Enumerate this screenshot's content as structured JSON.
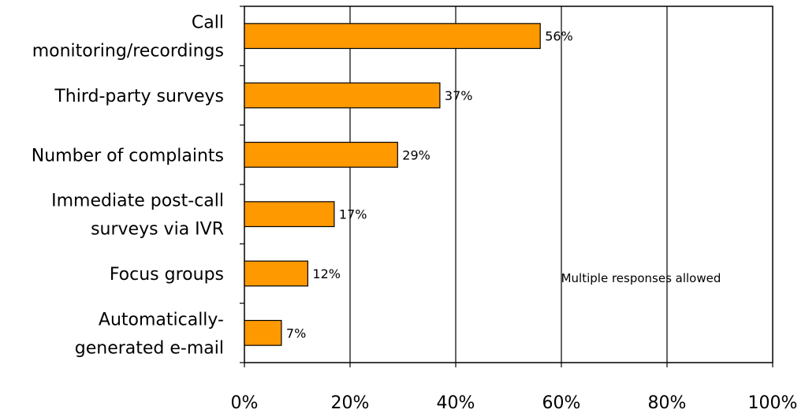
{
  "chart_data": {
    "type": "bar",
    "orientation": "horizontal",
    "categories": [
      [
        "Call",
        "monitoring/recordings"
      ],
      [
        "Third-party surveys"
      ],
      [
        "Number of complaints"
      ],
      [
        "Immediate post-call",
        "surveys via IVR"
      ],
      [
        "Focus groups"
      ],
      [
        "Automatically-",
        "generated e-mail"
      ]
    ],
    "values": [
      56,
      37,
      29,
      17,
      12,
      7
    ],
    "value_labels": [
      "56%",
      "37%",
      "29%",
      "17%",
      "12%",
      "7%"
    ],
    "xlim": [
      0,
      100
    ],
    "x_ticks": [
      0,
      20,
      40,
      60,
      80,
      100
    ],
    "x_tick_labels": [
      "0%",
      "20%",
      "40%",
      "60%",
      "80%",
      "100%"
    ],
    "gridlines": "vertical",
    "bar_color": "#FF9900",
    "annotation": "Multiple responses allowed",
    "legend": "none"
  }
}
